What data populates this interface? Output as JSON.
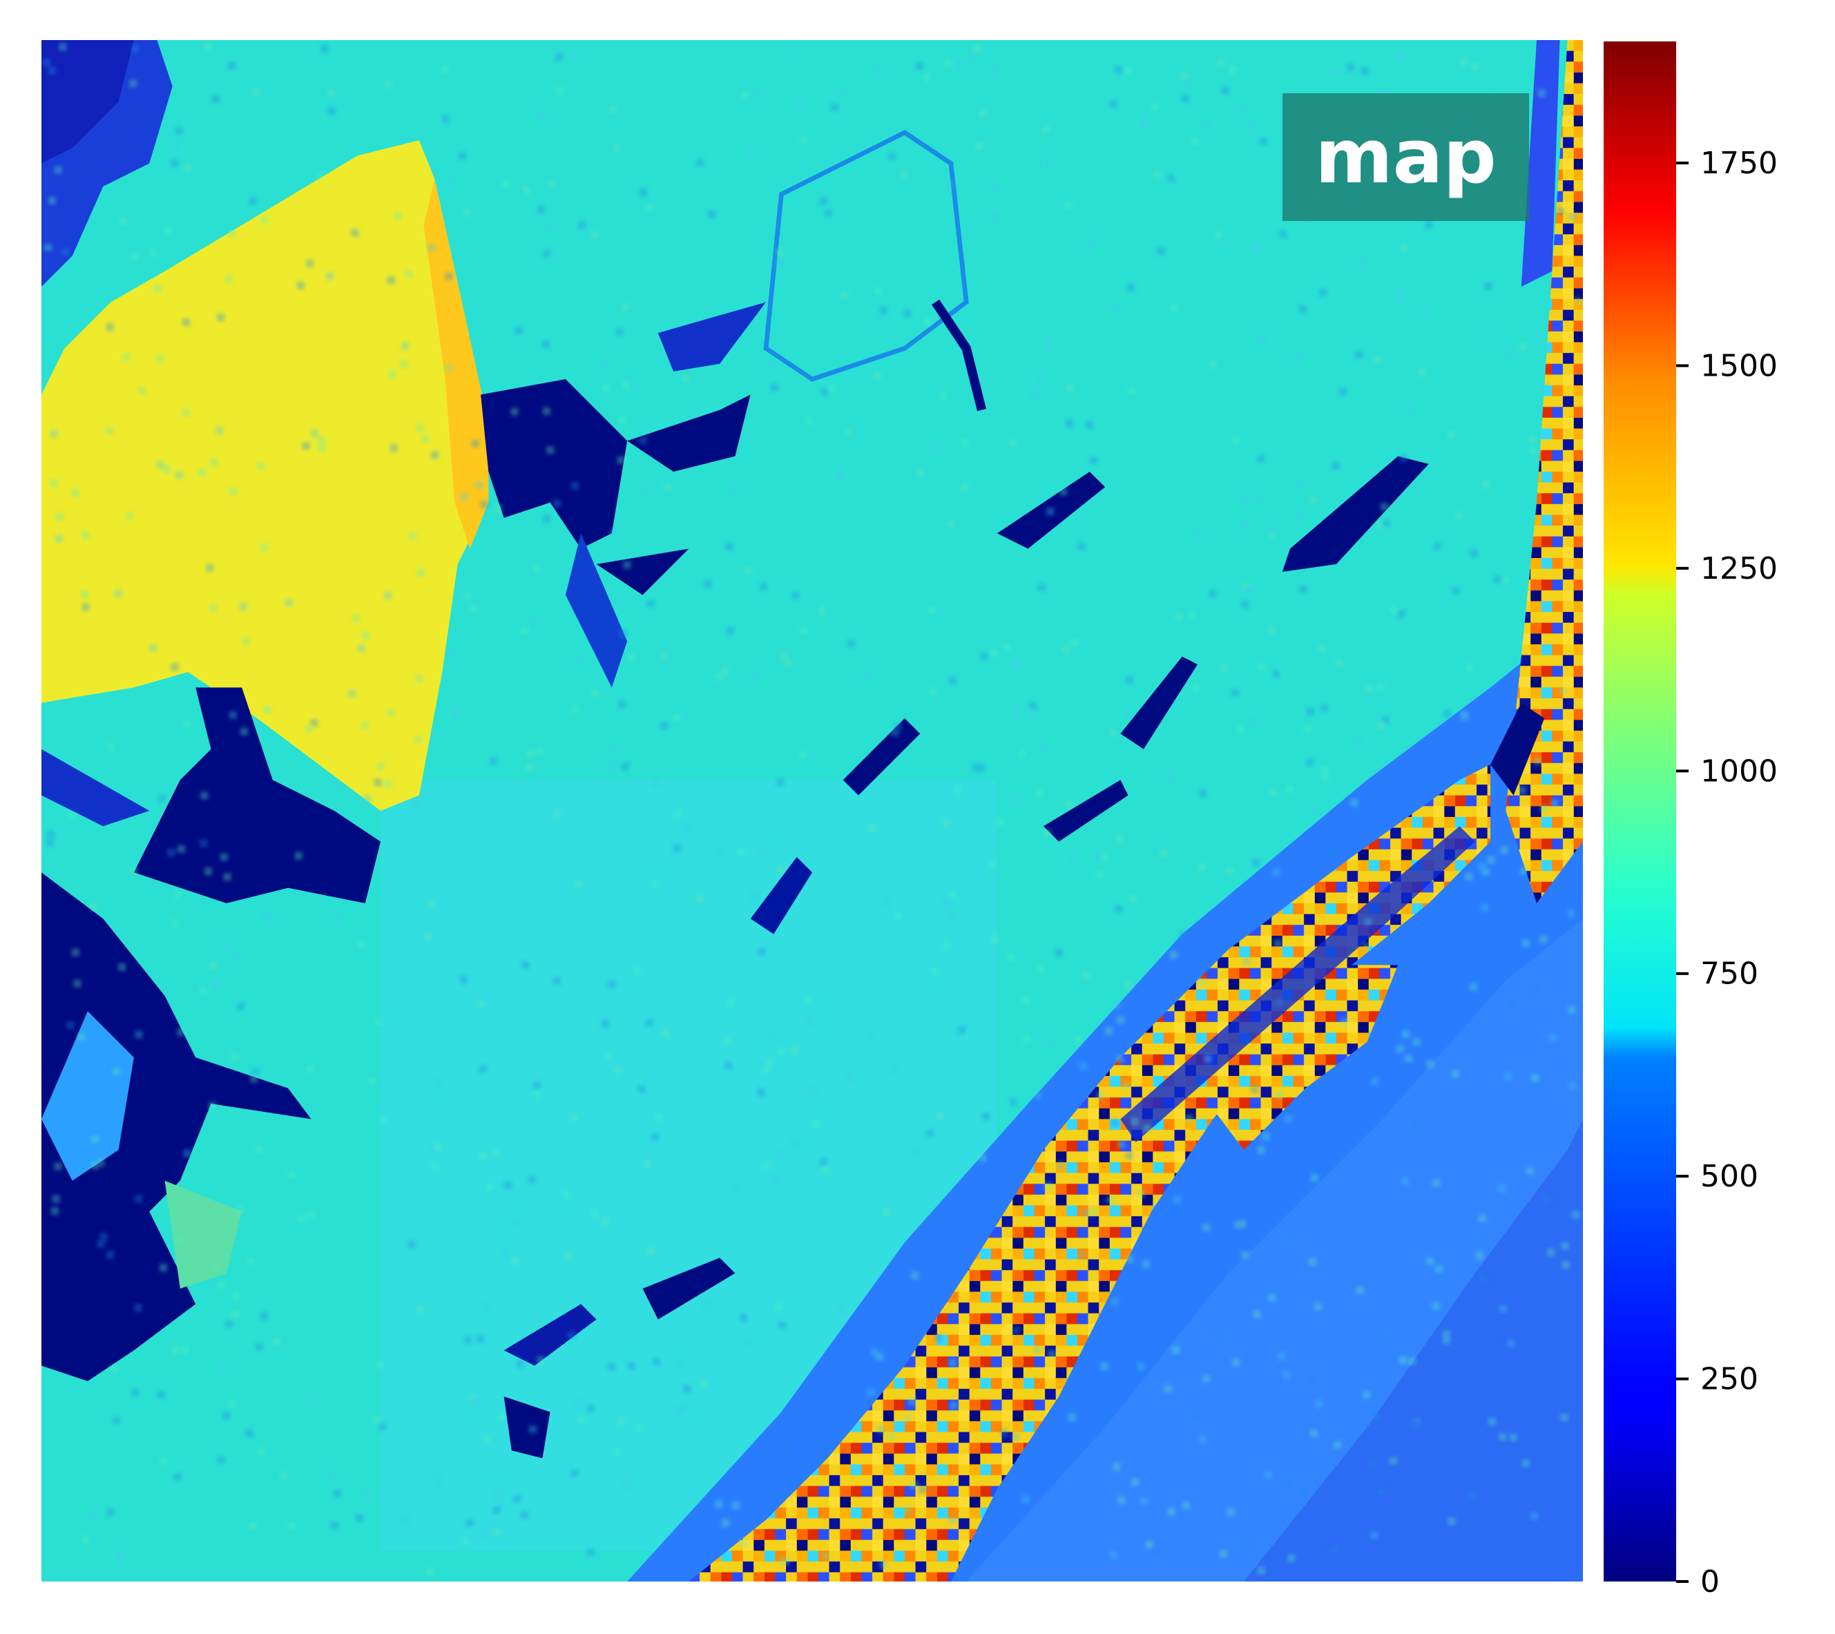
{
  "chart_data": {
    "type": "heatmap",
    "title": "map",
    "xlabel": "",
    "ylabel": "",
    "colormap": "jet",
    "vmin": 0,
    "vmax": 1900,
    "grid": false,
    "colorbar": {
      "ticks": [
        0,
        250,
        500,
        750,
        1000,
        1250,
        1500,
        1750
      ],
      "tick_labels": [
        "0",
        "250",
        "500",
        "750",
        "1000",
        "1250",
        "1500",
        "1750"
      ]
    },
    "regions": [
      {
        "name": "background",
        "value": 720
      },
      {
        "name": "upper-left yellow blob",
        "value": 1280
      },
      {
        "name": "low-value dark patches",
        "value": 0
      },
      {
        "name": "speckled band (mottled)",
        "value_range": [
          0,
          1750
        ]
      },
      {
        "name": "blue rim",
        "value": 420
      }
    ]
  }
}
